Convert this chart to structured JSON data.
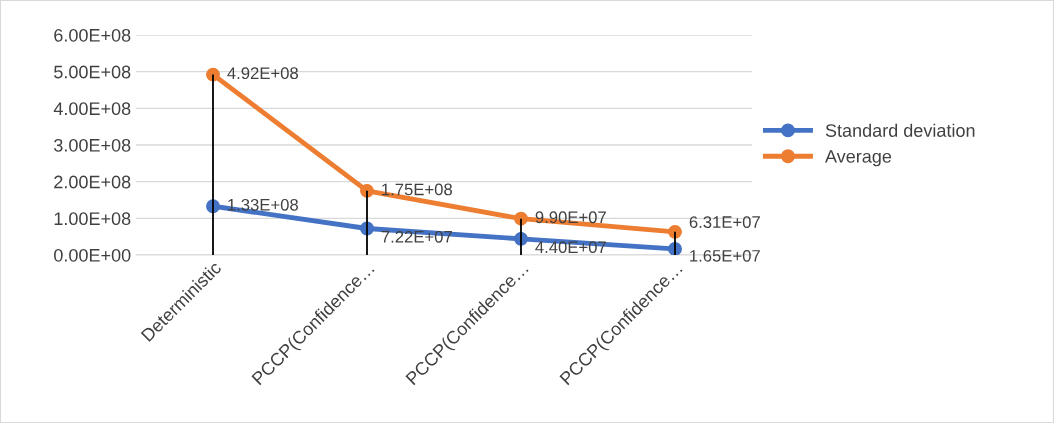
{
  "chart_data": {
    "type": "line",
    "categories": [
      "Deterministic",
      "PCCP(Confidence…",
      "PCCP(Confidence…",
      "PCCP(Confidence…"
    ],
    "series": [
      {
        "name": "Standard deviation",
        "color": "#4472c4",
        "values": [
          133000000,
          72200000,
          44000000,
          16500000
        ],
        "value_labels": [
          "1.33E+08",
          "7.22E+07",
          "4.40E+07",
          "1.65E+07"
        ]
      },
      {
        "name": "Average",
        "color": "#ed7d31",
        "values": [
          492000000,
          175000000,
          99000000,
          63100000
        ],
        "value_labels": [
          "4.92E+08",
          "1.75E+08",
          "9.90E+07",
          "6.31E+07"
        ],
        "errors": [
          [
            0,
            492000000
          ],
          [
            0,
            175000000
          ],
          [
            0,
            99000000
          ],
          [
            0,
            63100000
          ]
        ]
      }
    ],
    "ylim": [
      0,
      600000000
    ],
    "yticks": [
      {
        "value": 0,
        "label": "0.00E+00"
      },
      {
        "value": 100000000,
        "label": "1.00E+08"
      },
      {
        "value": 200000000,
        "label": "2.00E+08"
      },
      {
        "value": 300000000,
        "label": "3.00E+08"
      },
      {
        "value": 400000000,
        "label": "4.00E+08"
      },
      {
        "value": 500000000,
        "label": "5.00E+08"
      },
      {
        "value": 600000000,
        "label": "6.00E+08"
      }
    ],
    "grid": "y",
    "legend": "right",
    "marker": "circle",
    "line_style": "solid"
  }
}
